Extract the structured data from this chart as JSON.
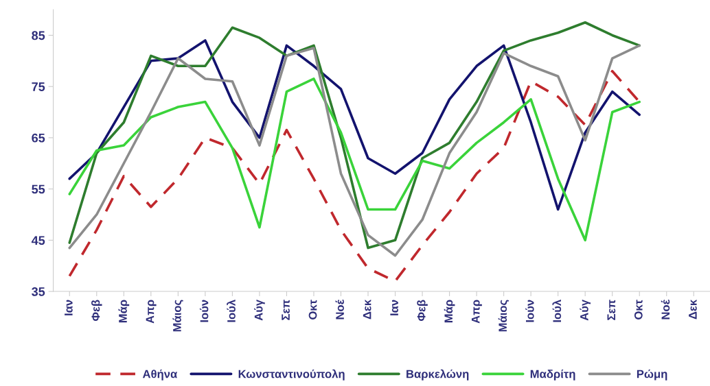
{
  "chart_data": {
    "type": "line",
    "categories": [
      "Ιαν",
      "Φεβ",
      "Μάρ",
      "Απρ",
      "Μάιος",
      "Ιούν",
      "Ιούλ",
      "Αύγ",
      "Σεπ",
      "Οκτ",
      "Νοέ",
      "Δεκ",
      "Ιαν",
      "Φεβ",
      "Μάρ",
      "Απρ",
      "Μάιος",
      "Ιούν",
      "Ιούλ",
      "Αύγ",
      "Σεπ",
      "Οκτ",
      "Νοέ",
      "Δεκ"
    ],
    "series": [
      {
        "name": "Αθήνα",
        "color": "#c0282d",
        "line_style": "dashed",
        "values": [
          38,
          47,
          57.5,
          51.5,
          57,
          65,
          63,
          56,
          66.5,
          57,
          47,
          39.5,
          37,
          44,
          50.5,
          58,
          63,
          76,
          73,
          67.5,
          78,
          72,
          null,
          null
        ]
      },
      {
        "name": "Κωνσταντινούπολη",
        "color": "#13136e",
        "values": [
          57,
          62,
          71,
          80,
          80.5,
          84,
          72,
          65,
          83,
          79,
          74.5,
          61,
          58,
          62,
          72.5,
          79,
          83,
          68,
          51,
          66,
          74,
          69.5,
          null,
          null
        ]
      },
      {
        "name": "Βαρκελώνη",
        "color": "#2e7d2e",
        "values": [
          44.5,
          62,
          68,
          81,
          79,
          79,
          86.5,
          84.5,
          81,
          83,
          65,
          43.5,
          45,
          61,
          64,
          72,
          82,
          84,
          85.5,
          87.5,
          85,
          83,
          null,
          null
        ]
      },
      {
        "name": "Μαδρίτη",
        "color": "#3ad33a",
        "values": [
          54,
          62.5,
          63.5,
          69,
          71,
          72,
          63,
          47.5,
          74,
          76.5,
          66,
          51,
          51,
          60.5,
          59,
          64,
          68,
          72.5,
          57,
          45,
          70,
          72,
          null,
          null
        ]
      },
      {
        "name": "Ρώμη",
        "color": "#8c8c8c",
        "values": [
          43.5,
          50,
          60,
          70,
          80.5,
          76.5,
          76,
          63.5,
          81,
          82.5,
          58,
          46,
          42,
          49,
          62,
          70,
          81.5,
          79,
          77,
          64.5,
          80.5,
          83,
          null,
          null
        ]
      }
    ],
    "ylim": [
      35,
      90
    ],
    "yticks": [
      35,
      45,
      55,
      65,
      75,
      85
    ],
    "grid": false,
    "legend": "bottom",
    "line_style": "solid",
    "marker": "none"
  }
}
